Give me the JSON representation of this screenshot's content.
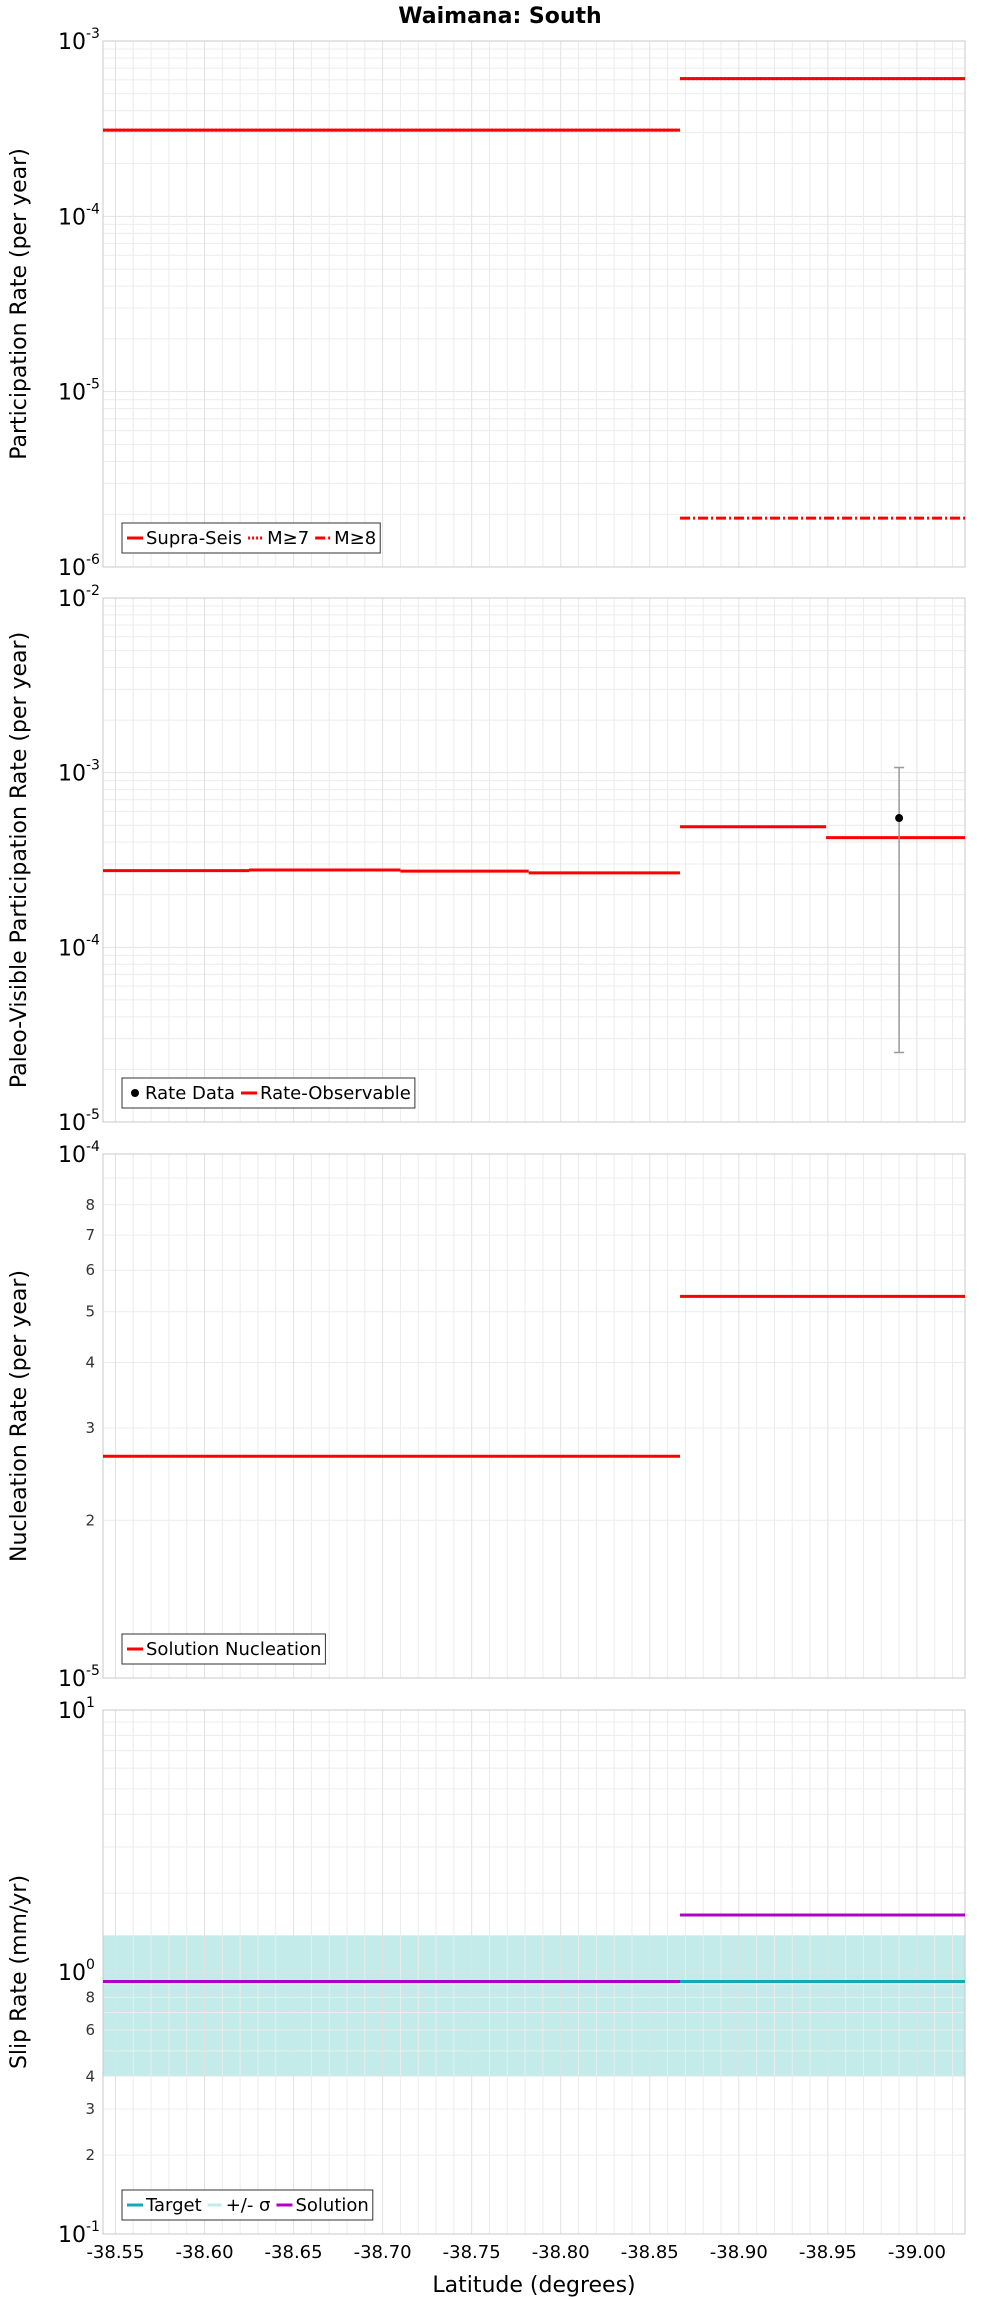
{
  "figure": {
    "title": "Waimana: South",
    "xlabel": "Latitude (degrees)",
    "xticks": [
      "-38.55",
      "-38.60",
      "-38.65",
      "-38.70",
      "-38.75",
      "-38.80",
      "-38.85",
      "-38.90",
      "-38.95",
      "-39.00"
    ]
  },
  "colors": {
    "red": "#ff0000",
    "cyan": "#1aa7b5",
    "band": "#c2ebe9",
    "magenta": "#b000c8",
    "purple": "#6a30b0",
    "grid": "#ececec",
    "frame": "#c8c8c8",
    "errorbar": "#999999"
  },
  "chart_data": [
    {
      "type": "line",
      "panel": "participation",
      "ylabel": "Participation Rate (per year)",
      "yscale": "log",
      "ylim": [
        1e-06,
        0.001
      ],
      "xlim": [
        -38.543,
        -39.027
      ],
      "ytick_labels": [
        {
          "value": 0.001,
          "base": "10",
          "exp": "-3"
        },
        {
          "value": 0.0001,
          "base": "10",
          "exp": "-4"
        },
        {
          "value": 1e-05,
          "base": "10",
          "exp": "-5"
        },
        {
          "value": 1e-06,
          "base": "10",
          "exp": "-6"
        }
      ],
      "series": [
        {
          "name": "Supra-Seis",
          "style": "solid",
          "color": "#ff0000",
          "segments": [
            [
              -38.543,
              -38.867,
              0.00031
            ],
            [
              -38.867,
              -39.027,
              0.00061
            ]
          ]
        },
        {
          "name": "M≥7",
          "style": "dotted",
          "color": "#ff0000",
          "segments": [
            [
              -38.543,
              -38.867,
              0.00031
            ],
            [
              -38.867,
              -39.027,
              0.00061
            ]
          ]
        },
        {
          "name": "M≥8",
          "style": "dashdot",
          "color": "#ff0000",
          "segments": [
            [
              -38.867,
              -39.027,
              1.9e-06
            ]
          ]
        }
      ],
      "legend": {
        "position": "bottom-left"
      }
    },
    {
      "type": "line",
      "panel": "paleo",
      "ylabel": "Paleo-Visible Participation Rate (per year)",
      "yscale": "log",
      "ylim": [
        1e-05,
        0.01
      ],
      "xlim": [
        -38.543,
        -39.027
      ],
      "ytick_labels": [
        {
          "value": 0.01,
          "base": "10",
          "exp": "-2"
        },
        {
          "value": 0.001,
          "base": "10",
          "exp": "-3"
        },
        {
          "value": 0.0001,
          "base": "10",
          "exp": "-4"
        },
        {
          "value": 1e-05,
          "base": "10",
          "exp": "-5"
        }
      ],
      "series": [
        {
          "name": "Rate Data",
          "style": "point",
          "color": "#000000",
          "points": [
            {
              "x": -38.99,
              "y": 0.00055,
              "low": 2.5e-05,
              "high": 0.00107
            }
          ]
        },
        {
          "name": "Rate-Observable",
          "style": "solid",
          "color": "#ff0000",
          "segments": [
            [
              -38.543,
              -38.625,
              0.000275
            ],
            [
              -38.625,
              -38.71,
              0.000277
            ],
            [
              -38.71,
              -38.782,
              0.000273
            ],
            [
              -38.782,
              -38.867,
              0.000267
            ],
            [
              -38.867,
              -38.949,
              0.00049
            ],
            [
              -38.949,
              -39.027,
              0.000425
            ]
          ]
        }
      ],
      "legend": {
        "position": "bottom-left"
      }
    },
    {
      "type": "line",
      "panel": "nucleation",
      "ylabel": "Nucleation Rate (per year)",
      "yscale": "log",
      "ylim": [
        1e-05,
        0.0001
      ],
      "xlim": [
        -38.543,
        -39.027
      ],
      "ytick_labels": [
        {
          "value": 0.0001,
          "base": "10",
          "exp": "-4"
        },
        {
          "value": 1e-05,
          "base": "10",
          "exp": "-5"
        }
      ],
      "minor_tick_labels": [
        "2",
        "3",
        "4",
        "5",
        "6",
        "7",
        "8"
      ],
      "series": [
        {
          "name": "Solution Nucleation",
          "style": "solid",
          "color": "#ff0000",
          "segments": [
            [
              -38.543,
              -38.867,
              2.65e-05
            ],
            [
              -38.867,
              -39.027,
              5.35e-05
            ]
          ]
        }
      ],
      "legend": {
        "position": "bottom-left"
      }
    },
    {
      "type": "area",
      "panel": "slip",
      "ylabel": "Slip Rate (mm/yr)",
      "yscale": "log",
      "ylim": [
        0.1,
        10
      ],
      "xlim": [
        -38.543,
        -39.027
      ],
      "ytick_labels": [
        {
          "value": 10,
          "base": "10",
          "exp": "1"
        },
        {
          "value": 1,
          "base": "10",
          "exp": "0"
        },
        {
          "value": 0.1,
          "base": "10",
          "exp": "-1"
        }
      ],
      "minor_tick_labels": [
        "2",
        "3",
        "4",
        "6",
        "8"
      ],
      "series": [
        {
          "name": "Target",
          "style": "solid",
          "color": "#1aa7b5",
          "segments": [
            [
              -38.543,
              -39.027,
              0.92
            ]
          ]
        },
        {
          "name": "+/- σ",
          "style": "band",
          "color": "#c2ebe9",
          "band": {
            "x0": -38.543,
            "x1": -39.027,
            "low": 0.4,
            "high": 1.38
          }
        },
        {
          "name": "Solution",
          "style": "solid",
          "color": "#b000c8",
          "segments": [
            [
              -38.543,
              -38.867,
              0.92
            ],
            [
              -38.867,
              -39.027,
              1.65
            ]
          ]
        }
      ],
      "legend": {
        "position": "bottom-left"
      }
    }
  ]
}
